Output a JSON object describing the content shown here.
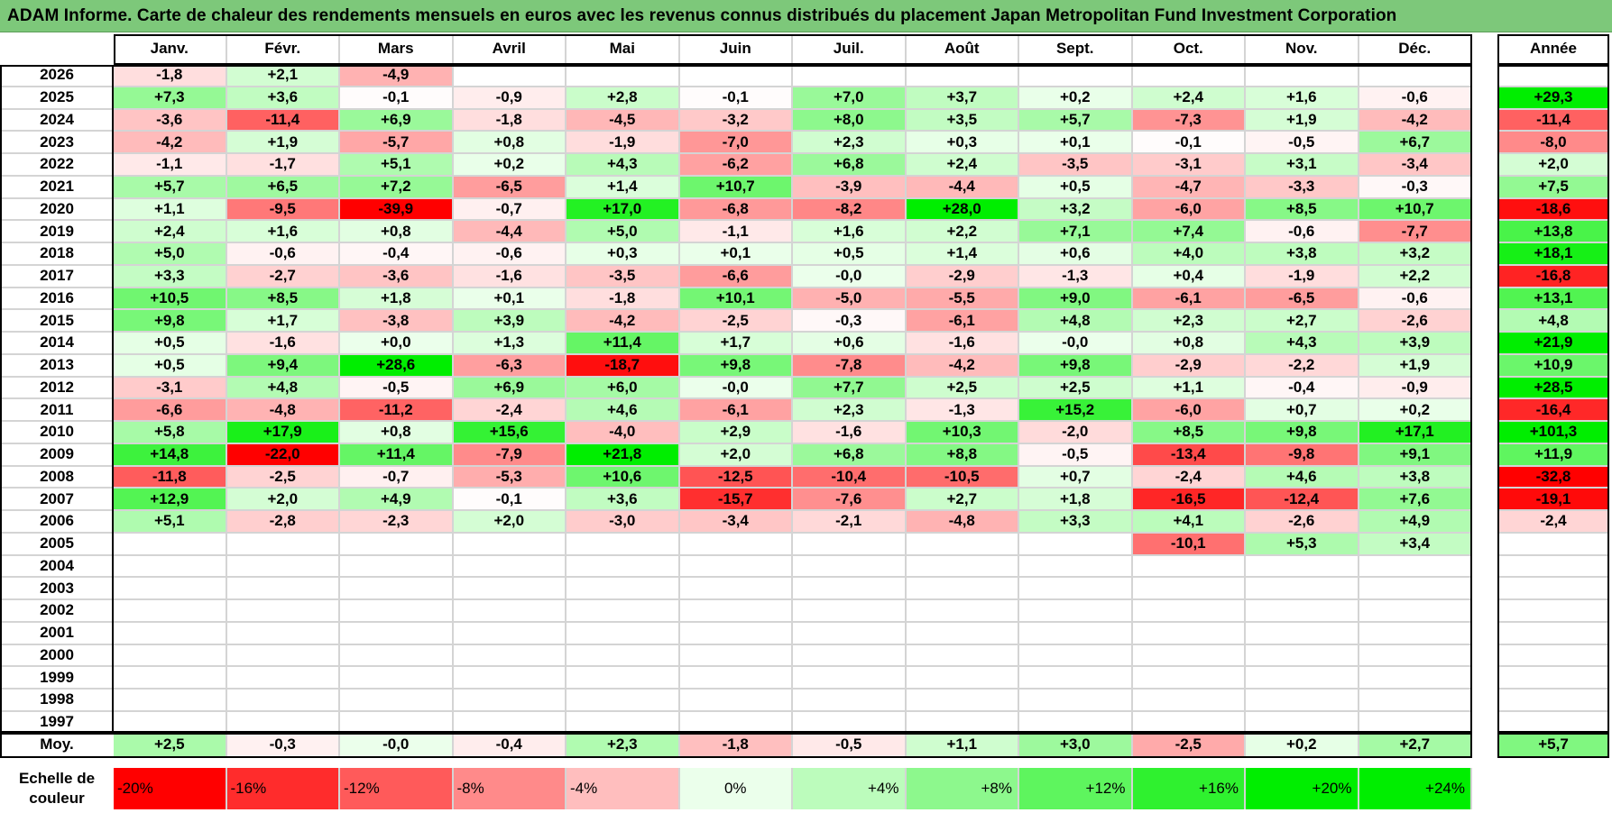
{
  "title": "ADAM Informe. Carte de chaleur des rendements mensuels en euros avec les revenus connus distribués du placement Japan Metropolitan Fund Investment Corporation",
  "chart_data": {
    "type": "heatmap",
    "title": "ADAM Informe. Carte de chaleur des rendements mensuels en euros avec les revenus connus distribués du placement Japan Metropolitan Fund Investment Corporation",
    "columns": [
      "Janv.",
      "Févr.",
      "Mars",
      "Avril",
      "Mai",
      "Juin",
      "Juil.",
      "Août",
      "Sept.",
      "Oct.",
      "Nov.",
      "Déc."
    ],
    "year_column_label": "Année",
    "rows": [
      {
        "year": "2026",
        "values": [
          "-1,8",
          "+2,1",
          "-4,9",
          "",
          "",
          "",
          "",
          "",
          "",
          "",
          "",
          ""
        ],
        "annual": ""
      },
      {
        "year": "2025",
        "values": [
          "+7,3",
          "+3,6",
          "-0,1",
          "-0,9",
          "+2,8",
          "-0,1",
          "+7,0",
          "+3,7",
          "+0,2",
          "+2,4",
          "+1,6",
          "-0,6"
        ],
        "annual": "+29,3"
      },
      {
        "year": "2024",
        "values": [
          "-3,6",
          "-11,4",
          "+6,9",
          "-1,8",
          "-4,5",
          "-3,2",
          "+8,0",
          "+3,5",
          "+5,7",
          "-7,3",
          "+1,9",
          "-4,2"
        ],
        "annual": "-11,4"
      },
      {
        "year": "2023",
        "values": [
          "-4,2",
          "+1,9",
          "-5,7",
          "+0,8",
          "-1,9",
          "-7,0",
          "+2,3",
          "+0,3",
          "+0,1",
          "-0,1",
          "-0,5",
          "+6,7"
        ],
        "annual": "-8,0"
      },
      {
        "year": "2022",
        "values": [
          "-1,1",
          "-1,7",
          "+5,1",
          "+0,2",
          "+4,3",
          "-6,2",
          "+6,8",
          "+2,4",
          "-3,5",
          "-3,1",
          "+3,1",
          "-3,4"
        ],
        "annual": "+2,0"
      },
      {
        "year": "2021",
        "values": [
          "+5,7",
          "+6,5",
          "+7,2",
          "-6,5",
          "+1,4",
          "+10,7",
          "-3,9",
          "-4,4",
          "+0,5",
          "-4,7",
          "-3,3",
          "-0,3"
        ],
        "annual": "+7,5"
      },
      {
        "year": "2020",
        "values": [
          "+1,1",
          "-9,5",
          "-39,9",
          "-0,7",
          "+17,0",
          "-6,8",
          "-8,2",
          "+28,0",
          "+3,2",
          "-6,0",
          "+8,5",
          "+10,7"
        ],
        "annual": "-18,6"
      },
      {
        "year": "2019",
        "values": [
          "+2,4",
          "+1,6",
          "+0,8",
          "-4,4",
          "+5,0",
          "-1,1",
          "+1,6",
          "+2,2",
          "+7,1",
          "+7,4",
          "-0,6",
          "-7,7"
        ],
        "annual": "+13,8"
      },
      {
        "year": "2018",
        "values": [
          "+5,0",
          "-0,6",
          "-0,4",
          "-0,6",
          "+0,3",
          "+0,1",
          "+0,5",
          "+1,4",
          "+0,6",
          "+4,0",
          "+3,8",
          "+3,2"
        ],
        "annual": "+18,1"
      },
      {
        "year": "2017",
        "values": [
          "+3,3",
          "-2,7",
          "-3,6",
          "-1,6",
          "-3,5",
          "-6,6",
          "-0,0",
          "-2,9",
          "-1,3",
          "+0,4",
          "-1,9",
          "+2,2"
        ],
        "annual": "-16,8"
      },
      {
        "year": "2016",
        "values": [
          "+10,5",
          "+8,5",
          "+1,8",
          "+0,1",
          "-1,8",
          "+10,1",
          "-5,0",
          "-5,5",
          "+9,0",
          "-6,1",
          "-6,5",
          "-0,6"
        ],
        "annual": "+13,1"
      },
      {
        "year": "2015",
        "values": [
          "+9,8",
          "+1,7",
          "-3,8",
          "+3,9",
          "-4,2",
          "-2,5",
          "-0,3",
          "-6,1",
          "+4,8",
          "+2,3",
          "+2,7",
          "-2,6"
        ],
        "annual": "+4,8"
      },
      {
        "year": "2014",
        "values": [
          "+0,5",
          "-1,6",
          "+0,0",
          "+1,3",
          "+11,4",
          "+1,7",
          "+0,6",
          "-1,6",
          "-0,0",
          "+0,8",
          "+4,3",
          "+3,9"
        ],
        "annual": "+21,9"
      },
      {
        "year": "2013",
        "values": [
          "+0,5",
          "+9,4",
          "+28,6",
          "-6,3",
          "-18,7",
          "+9,8",
          "-7,8",
          "-4,2",
          "+9,8",
          "-2,9",
          "-2,2",
          "+1,9"
        ],
        "annual": "+10,9"
      },
      {
        "year": "2012",
        "values": [
          "-3,1",
          "+4,8",
          "-0,5",
          "+6,9",
          "+6,0",
          "-0,0",
          "+7,7",
          "+2,5",
          "+2,5",
          "+1,1",
          "-0,4",
          "-0,9"
        ],
        "annual": "+28,5"
      },
      {
        "year": "2011",
        "values": [
          "-6,6",
          "-4,8",
          "-11,2",
          "-2,4",
          "+4,6",
          "-6,1",
          "+2,3",
          "-1,3",
          "+15,2",
          "-6,0",
          "+0,7",
          "+0,2"
        ],
        "annual": "-16,4"
      },
      {
        "year": "2010",
        "values": [
          "+5,8",
          "+17,9",
          "+0,8",
          "+15,6",
          "-4,0",
          "+2,9",
          "-1,6",
          "+10,3",
          "-2,0",
          "+8,5",
          "+9,8",
          "+17,1"
        ],
        "annual": "+101,3"
      },
      {
        "year": "2009",
        "values": [
          "+14,8",
          "-22,0",
          "+11,4",
          "-7,9",
          "+21,8",
          "+2,0",
          "+6,8",
          "+8,8",
          "-0,5",
          "-13,4",
          "-9,8",
          "+9,1"
        ],
        "annual": "+11,9"
      },
      {
        "year": "2008",
        "values": [
          "-11,8",
          "-2,5",
          "-0,7",
          "-5,3",
          "+10,6",
          "-12,5",
          "-10,4",
          "-10,5",
          "+0,7",
          "-2,4",
          "+4,6",
          "+3,8"
        ],
        "annual": "-32,8"
      },
      {
        "year": "2007",
        "values": [
          "+12,9",
          "+2,0",
          "+4,9",
          "-0,1",
          "+3,6",
          "-15,7",
          "-7,6",
          "+2,7",
          "+1,8",
          "-16,5",
          "-12,4",
          "+7,6"
        ],
        "annual": "-19,1"
      },
      {
        "year": "2006",
        "values": [
          "+5,1",
          "-2,8",
          "-2,3",
          "+2,0",
          "-3,0",
          "-3,4",
          "-2,1",
          "-4,8",
          "+3,3",
          "+4,1",
          "-2,6",
          "+4,9"
        ],
        "annual": "-2,4"
      },
      {
        "year": "2005",
        "values": [
          "",
          "",
          "",
          "",
          "",
          "",
          "",
          "",
          "",
          "-10,1",
          "+5,3",
          "+3,4"
        ],
        "annual": ""
      },
      {
        "year": "2004",
        "values": [
          "",
          "",
          "",
          "",
          "",
          "",
          "",
          "",
          "",
          "",
          "",
          ""
        ],
        "annual": ""
      },
      {
        "year": "2003",
        "values": [
          "",
          "",
          "",
          "",
          "",
          "",
          "",
          "",
          "",
          "",
          "",
          ""
        ],
        "annual": ""
      },
      {
        "year": "2002",
        "values": [
          "",
          "",
          "",
          "",
          "",
          "",
          "",
          "",
          "",
          "",
          "",
          ""
        ],
        "annual": ""
      },
      {
        "year": "2001",
        "values": [
          "",
          "",
          "",
          "",
          "",
          "",
          "",
          "",
          "",
          "",
          "",
          ""
        ],
        "annual": ""
      },
      {
        "year": "2000",
        "values": [
          "",
          "",
          "",
          "",
          "",
          "",
          "",
          "",
          "",
          "",
          "",
          ""
        ],
        "annual": ""
      },
      {
        "year": "1999",
        "values": [
          "",
          "",
          "",
          "",
          "",
          "",
          "",
          "",
          "",
          "",
          "",
          ""
        ],
        "annual": ""
      },
      {
        "year": "1998",
        "values": [
          "",
          "",
          "",
          "",
          "",
          "",
          "",
          "",
          "",
          "",
          "",
          ""
        ],
        "annual": ""
      },
      {
        "year": "1997",
        "values": [
          "",
          "",
          "",
          "",
          "",
          "",
          "",
          "",
          "",
          "",
          "",
          ""
        ],
        "annual": ""
      }
    ],
    "average": {
      "label": "Moy.",
      "values": [
        "+2,5",
        "-0,3",
        "-0,0",
        "-0,4",
        "+2,3",
        "-1,8",
        "-0,5",
        "+1,1",
        "+3,0",
        "-2,5",
        "+0,2",
        "+2,7"
      ],
      "annual": "+5,7"
    },
    "color_scale": {
      "label": "Echelle de couleur",
      "stops": [
        {
          "label": "-20%",
          "value": -20
        },
        {
          "label": "-16%",
          "value": -16
        },
        {
          "label": "-12%",
          "value": -12
        },
        {
          "label": "-8%",
          "value": -8
        },
        {
          "label": "-4%",
          "value": -4
        },
        {
          "label": "0%",
          "value": 0
        },
        {
          "label": "+4%",
          "value": 4
        },
        {
          "label": "+8%",
          "value": 8
        },
        {
          "label": "+12%",
          "value": 12
        },
        {
          "label": "+16%",
          "value": 16
        },
        {
          "label": "+20%",
          "value": 20
        },
        {
          "label": "+24%",
          "value": 24
        }
      ]
    },
    "colors": {
      "negative": "#ff0000",
      "neutral": "#ffffff",
      "positive": "#00ee00"
    }
  }
}
